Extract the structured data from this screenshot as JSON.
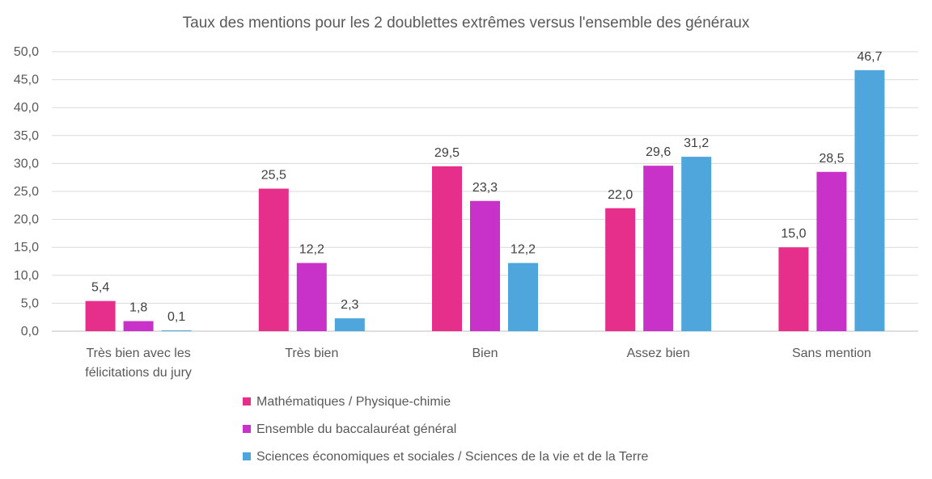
{
  "chart_data": {
    "type": "bar",
    "title": "Taux des mentions pour les 2 doublettes  extrêmes versus l'ensemble des généraux",
    "xlabel": "",
    "ylabel": "",
    "ylim": [
      0,
      50
    ],
    "yticks": [
      "0,0",
      "5,0",
      "10,0",
      "15,0",
      "20,0",
      "25,0",
      "30,0",
      "35,0",
      "40,0",
      "45,0",
      "50,0"
    ],
    "grid": true,
    "legend_position": "bottom",
    "categories": [
      [
        "Très bien avec les",
        "félicitations du jury"
      ],
      [
        "Très bien"
      ],
      [
        "Bien"
      ],
      [
        "Assez bien"
      ],
      [
        "Sans mention"
      ]
    ],
    "series": [
      {
        "name": "Mathématiques / Physique-chimie",
        "color": "#E62E8B",
        "values": [
          5.4,
          25.5,
          29.5,
          22.0,
          15.0
        ],
        "labels": [
          "5,4",
          "25,5",
          "29,5",
          "22,0",
          "15,0"
        ]
      },
      {
        "name": "Ensemble du baccalauréat général",
        "color": "#C832C8",
        "values": [
          1.8,
          12.2,
          23.3,
          29.6,
          28.5
        ],
        "labels": [
          "1,8",
          "12,2",
          "23,3",
          "29,6",
          "28,5"
        ]
      },
      {
        "name": "Sciences économiques et sociales / Sciences de la vie et de la Terre",
        "color": "#4EA6DC",
        "values": [
          0.1,
          2.3,
          12.2,
          31.2,
          46.7
        ],
        "labels": [
          "0,1",
          "2,3",
          "12,2",
          "31,2",
          "46,7"
        ]
      }
    ]
  }
}
